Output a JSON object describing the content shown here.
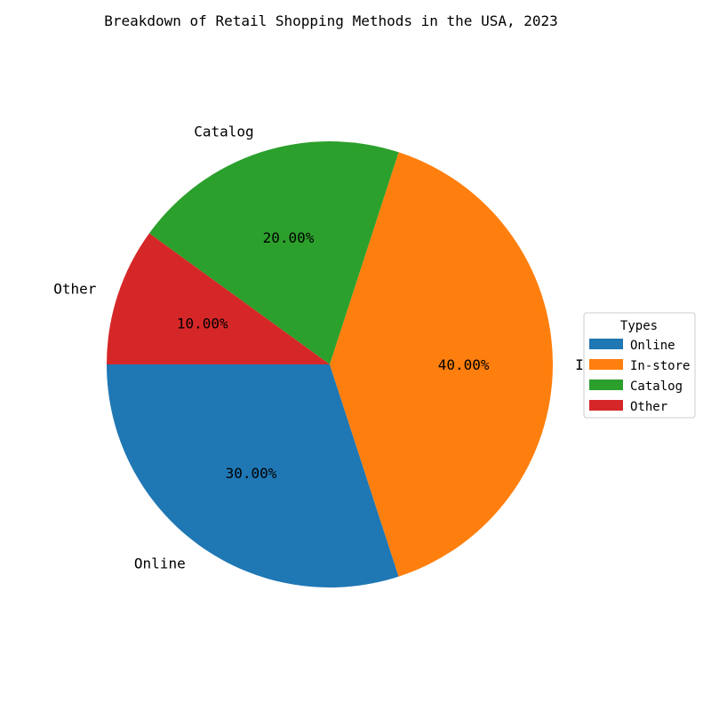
{
  "chart_data": {
    "type": "pie",
    "title": "Breakdown of Retail Shopping Methods in the USA, 2023",
    "categories": [
      "Online",
      "In-store",
      "Catalog",
      "Other"
    ],
    "values": [
      30,
      40,
      20,
      10
    ],
    "percent_labels": [
      "30.00%",
      "40.00%",
      "20.00%",
      "10.00%"
    ],
    "colors": [
      "#1f77b4",
      "#ff7f0e",
      "#2ca02c",
      "#d62728"
    ],
    "start_angle_deg": 180,
    "direction": "counterclockwise",
    "legend": {
      "title": "Types",
      "placement": "center-right",
      "entries": [
        "Online",
        "In-store",
        "Catalog",
        "Other"
      ]
    }
  }
}
